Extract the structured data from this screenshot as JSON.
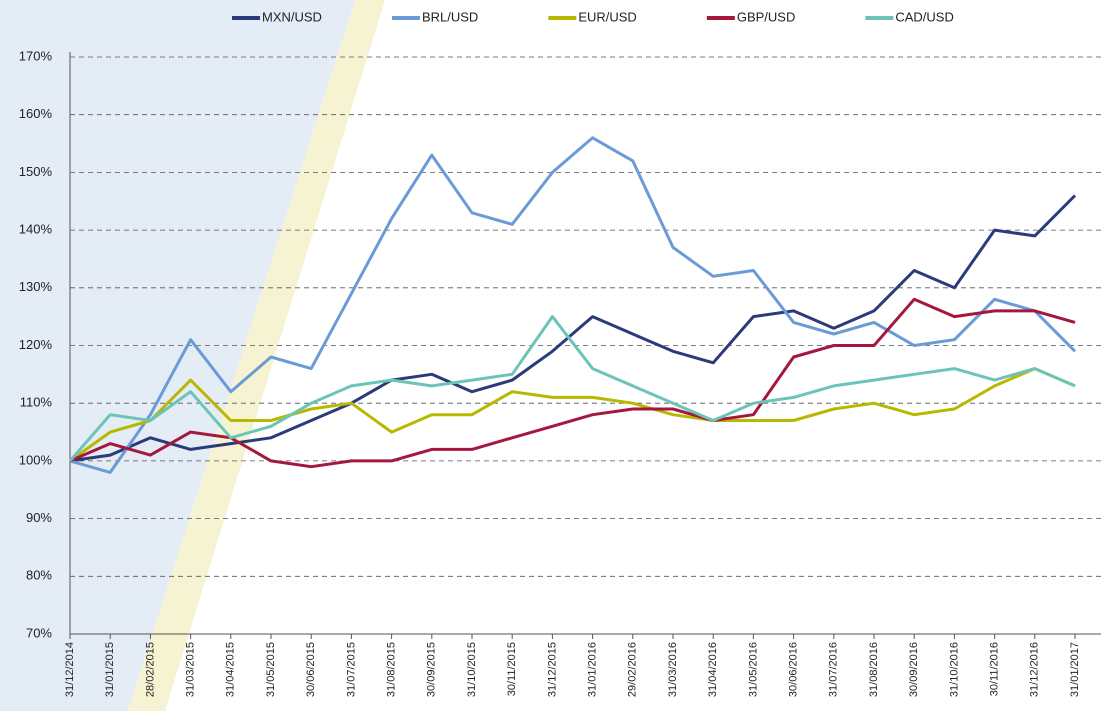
{
  "chart_data": {
    "type": "line",
    "categories": [
      "31/12/2014",
      "31/01/2015",
      "28/02/2015",
      "31/03/2015",
      "31/04/2015",
      "31/05/2015",
      "30/06/2015",
      "31/07/2015",
      "31/08/2015",
      "30/09/2015",
      "31/10/2015",
      "30/11/2015",
      "31/12/2015",
      "31/01/2016",
      "29/02/2016",
      "31/03/2016",
      "31/04/2016",
      "31/05/2016",
      "30/06/2016",
      "31/07/2016",
      "31/08/2016",
      "30/09/2016",
      "31/10/2016",
      "30/11/2016",
      "31/12/2016",
      "31/01/2017"
    ],
    "series": [
      {
        "name": "MXN/USD",
        "color": "#2b3a7a",
        "values": [
          100,
          101,
          104,
          102,
          103,
          104,
          107,
          110,
          114,
          115,
          112,
          114,
          119,
          125,
          122,
          119,
          117,
          125,
          126,
          123,
          126,
          133,
          130,
          140,
          139,
          146
        ]
      },
      {
        "name": "BRL/USD",
        "color": "#6a9bd6",
        "values": [
          100,
          98,
          108,
          121,
          112,
          118,
          116,
          129,
          142,
          153,
          143,
          141,
          150,
          156,
          152,
          137,
          132,
          133,
          124,
          122,
          124,
          120,
          121,
          128,
          126,
          119
        ]
      },
      {
        "name": "EUR/USD",
        "color": "#b8b800",
        "values": [
          100,
          105,
          107,
          114,
          107,
          107,
          109,
          110,
          105,
          108,
          108,
          112,
          111,
          111,
          110,
          108,
          107,
          107,
          107,
          109,
          110,
          108,
          109,
          113,
          116,
          113
        ]
      },
      {
        "name": "GBP/USD",
        "color": "#a5173d",
        "values": [
          100,
          103,
          101,
          105,
          104,
          100,
          99,
          100,
          100,
          102,
          102,
          104,
          106,
          108,
          109,
          109,
          107,
          108,
          118,
          120,
          120,
          128,
          125,
          126,
          126,
          124
        ]
      },
      {
        "name": "CAD/USD",
        "color": "#6cc4b8",
        "values": [
          100,
          108,
          107,
          112,
          104,
          106,
          110,
          113,
          114,
          113,
          114,
          115,
          125,
          116,
          113,
          110,
          107,
          110,
          111,
          113,
          114,
          115,
          116,
          114,
          116,
          113
        ]
      }
    ],
    "ylim": [
      70,
      170
    ],
    "yticks": [
      {
        "value": 70,
        "label": "70%"
      },
      {
        "value": 80,
        "label": "80%"
      },
      {
        "value": 90,
        "label": "90%"
      },
      {
        "value": 100,
        "label": "100%"
      },
      {
        "value": 110,
        "label": "110%"
      },
      {
        "value": 120,
        "label": "120%"
      },
      {
        "value": 130,
        "label": "130%"
      },
      {
        "value": 140,
        "label": "140%"
      },
      {
        "value": 150,
        "label": "150%"
      },
      {
        "value": 160,
        "label": "160%"
      },
      {
        "value": 170,
        "label": "170%"
      }
    ],
    "grid": true,
    "legend": "top"
  }
}
